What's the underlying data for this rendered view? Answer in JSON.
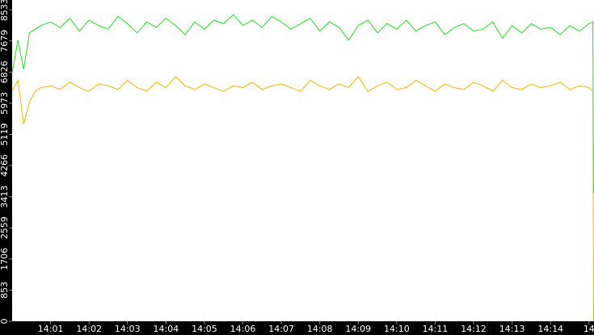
{
  "chart_data": {
    "type": "line",
    "x": [
      840,
      840.15,
      840.3,
      840.45,
      840.6,
      840.75,
      841,
      841.25,
      841.5,
      841.75,
      842,
      842.25,
      842.5,
      842.75,
      843,
      843.25,
      843.5,
      843.75,
      844,
      844.25,
      844.5,
      844.75,
      845,
      845.25,
      845.5,
      845.75,
      846,
      846.25,
      846.5,
      846.75,
      847,
      847.25,
      847.5,
      847.75,
      848,
      848.25,
      848.5,
      848.75,
      849,
      849.25,
      849.5,
      849.75,
      850,
      850.25,
      850.5,
      850.75,
      851,
      851.25,
      851.5,
      851.75,
      852,
      852.25,
      852.5,
      852.75,
      853,
      853.25,
      853.5,
      853.75,
      854,
      854.25,
      854.5,
      854.75,
      855,
      855.1,
      855.12
    ],
    "series": [
      {
        "color": "#22dd22",
        "values": [
          6800,
          7700,
          6900,
          7900,
          8000,
          8100,
          8200,
          8050,
          8300,
          7950,
          8250,
          8100,
          8000,
          8350,
          8150,
          7900,
          8200,
          8050,
          8300,
          8100,
          7850,
          8200,
          8000,
          8250,
          8150,
          8400,
          8100,
          8250,
          8050,
          8350,
          8200,
          8000,
          8150,
          8300,
          7950,
          8200,
          8050,
          7700,
          8100,
          8250,
          7900,
          8150,
          8000,
          8250,
          7950,
          8100,
          8200,
          7850,
          8050,
          8150,
          7950,
          8000,
          8200,
          7750,
          8100,
          7900,
          8150,
          8000,
          8050,
          7850,
          8100,
          7950,
          8150,
          8200,
          3500
        ]
      },
      {
        "color": "#f0b400",
        "values": [
          6300,
          6600,
          5400,
          6000,
          6300,
          6400,
          6450,
          6350,
          6550,
          6400,
          6300,
          6500,
          6450,
          6350,
          6600,
          6400,
          6300,
          6550,
          6400,
          6700,
          6450,
          6350,
          6500,
          6400,
          6300,
          6450,
          6400,
          6550,
          6350,
          6450,
          6500,
          6400,
          6300,
          6600,
          6450,
          6350,
          6500,
          6400,
          6700,
          6300,
          6450,
          6550,
          6350,
          6400,
          6600,
          6450,
          6300,
          6500,
          6400,
          6350,
          6550,
          6450,
          6300,
          6600,
          6400,
          6350,
          6500,
          6400,
          6450,
          6550,
          6350,
          6450,
          6400,
          6300,
          0
        ]
      }
    ],
    "xlim": [
      840,
      855.13
    ],
    "xticks": [
      {
        "value": 841,
        "label": "14:01"
      },
      {
        "value": 842,
        "label": "14:02"
      },
      {
        "value": 843,
        "label": "14:03"
      },
      {
        "value": 844,
        "label": "14:04"
      },
      {
        "value": 845,
        "label": "14:05"
      },
      {
        "value": 846,
        "label": "14:06"
      },
      {
        "value": 847,
        "label": "14:07"
      },
      {
        "value": 848,
        "label": "14:08"
      },
      {
        "value": 849,
        "label": "14:09"
      },
      {
        "value": 850,
        "label": "14:10"
      },
      {
        "value": 851,
        "label": "14:11"
      },
      {
        "value": 852,
        "label": "14:12"
      },
      {
        "value": 853,
        "label": "14:13"
      },
      {
        "value": 854,
        "label": "14:14"
      },
      {
        "value": 855,
        "label": "14"
      }
    ],
    "ylim": [
      0,
      8800
    ],
    "yticks": [
      0,
      853,
      1706,
      2559,
      3413,
      4266,
      5119,
      5973,
      6826,
      7679,
      8533
    ]
  }
}
